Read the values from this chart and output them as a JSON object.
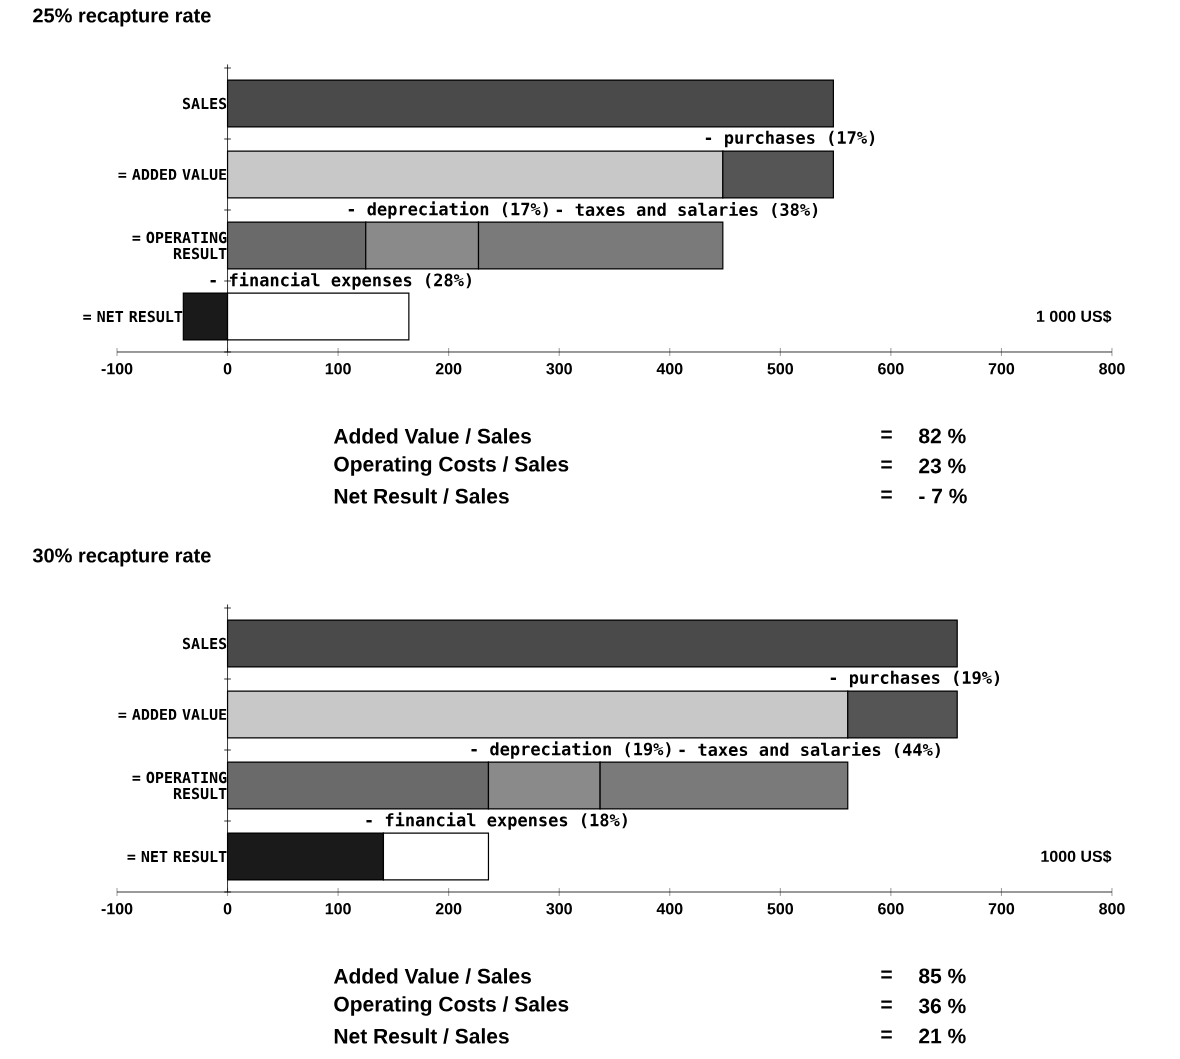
{
  "chart_data": [
    {
      "type": "bar",
      "orientation": "horizontal",
      "title": "25% recapture rate",
      "categories": [
        "SALES",
        "= ADDED VALUE",
        "= OPERATING RESULT",
        "= NET RESULT"
      ],
      "xlim": [
        -100,
        800
      ],
      "xticks": [
        -100,
        0,
        100,
        200,
        300,
        400,
        500,
        600,
        700,
        800
      ],
      "series": [
        {
          "values": [
            548,
            448,
            125,
            -40
          ],
          "base": [
            0,
            0,
            0,
            0
          ],
          "colors": [
            "#4a4a4a",
            "#c8c8c8",
            "#6a6a6a",
            "#1a1a1a"
          ]
        },
        {
          "values": [
            null,
            100,
            102,
            164
          ],
          "base": [
            null,
            448,
            125,
            0
          ],
          "colors": [
            null,
            "#555555",
            "#8a8a8a",
            "#ffffff"
          ]
        },
        {
          "values": [
            null,
            null,
            221,
            null
          ],
          "base": [
            null,
            null,
            227,
            null
          ],
          "colors": [
            null,
            null,
            "#7a7a7a",
            null
          ]
        }
      ],
      "annotations": [
        "- purchases (17%)",
        "- depreciation (17%)",
        "- taxes and salaries (38%)",
        "- financial expenses (28%)",
        "1 000 US$",
        "Added Value / Sales",
        "=",
        "82 %",
        "Operating Costs / Sales",
        "=",
        "23 %",
        "Net Result / Sales",
        "=",
        "- 7 %"
      ]
    },
    {
      "type": "bar",
      "orientation": "horizontal",
      "title": "30% recapture rate",
      "categories": [
        "SALES",
        "= ADDED VALUE",
        "= OPERATING RESULT",
        "= NET RESULT"
      ],
      "xlim": [
        -100,
        800
      ],
      "xticks": [
        -100,
        0,
        100,
        200,
        300,
        400,
        500,
        600,
        700,
        800
      ],
      "series": [
        {
          "values": [
            660,
            561,
            236,
            141
          ],
          "base": [
            0,
            0,
            0,
            0
          ],
          "colors": [
            "#4a4a4a",
            "#c8c8c8",
            "#6a6a6a",
            "#1a1a1a"
          ]
        },
        {
          "values": [
            null,
            99,
            101,
            95
          ],
          "base": [
            null,
            561,
            236,
            141
          ],
          "colors": [
            null,
            "#555555",
            "#8a8a8a",
            "#ffffff"
          ]
        },
        {
          "values": [
            null,
            null,
            224,
            null
          ],
          "base": [
            null,
            null,
            337,
            null
          ],
          "colors": [
            null,
            null,
            "#7a7a7a",
            null
          ]
        }
      ],
      "annotations": [
        "- purchases (19%)",
        "- depreciation (19%)",
        "- taxes and salaries (44%)",
        "- financial expenses (18%)",
        "1000 US$",
        "Added Value / Sales",
        "=",
        "85 %",
        "Operating Costs / Sales",
        "=",
        "36 %",
        "Net Result / Sales",
        "=",
        "21 %"
      ]
    }
  ]
}
